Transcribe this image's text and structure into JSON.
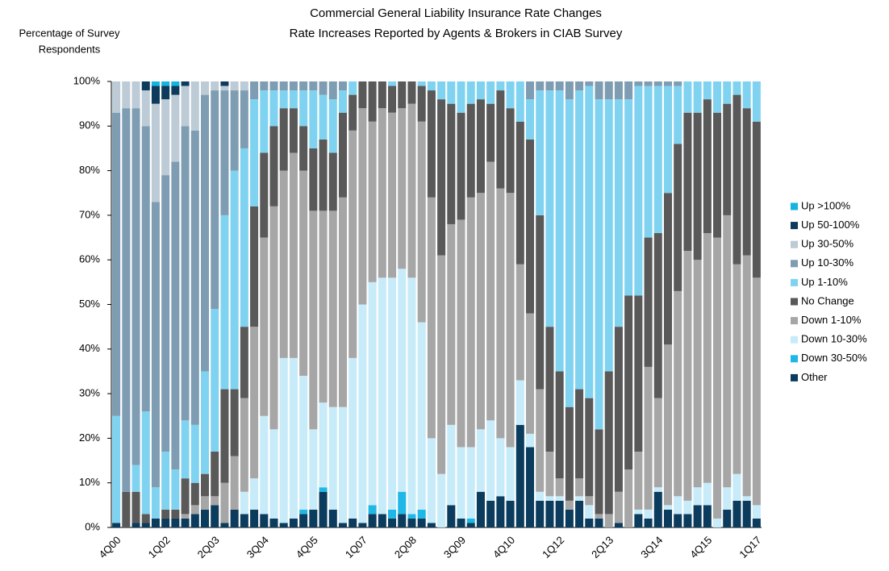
{
  "chart_data": {
    "type": "stacked-bar",
    "title": "Commercial General Liability Insurance Rate Changes",
    "subtitle": "Rate Increases Reported by Agents & Brokers in CIAB Survey",
    "ylabel": [
      "Percentage of Survey",
      "Respondents"
    ],
    "categories": [
      "4Q00",
      null,
      null,
      null,
      null,
      "1Q02",
      null,
      null,
      null,
      null,
      "2Q03",
      null,
      null,
      null,
      null,
      "3Q04",
      null,
      null,
      null,
      null,
      "4Q05",
      null,
      null,
      null,
      null,
      "1Q07",
      null,
      null,
      null,
      null,
      "2Q08",
      null,
      null,
      null,
      null,
      "3Q09",
      null,
      null,
      null,
      null,
      "4Q10",
      null,
      null,
      null,
      null,
      "1Q12",
      null,
      null,
      null,
      null,
      "2Q13",
      null,
      null,
      null,
      null,
      "3Q14",
      null,
      null,
      null,
      null,
      "4Q15",
      null,
      null,
      null,
      null,
      "1Q17"
    ],
    "ylim": [
      0,
      100
    ],
    "yticks": [
      {
        "value": 0,
        "label": "0%"
      },
      {
        "value": 10,
        "label": "10%"
      },
      {
        "value": 20,
        "label": "20%"
      },
      {
        "value": 30,
        "label": "30%"
      },
      {
        "value": 40,
        "label": "40%"
      },
      {
        "value": 50,
        "label": "50%"
      },
      {
        "value": 60,
        "label": "60%"
      },
      {
        "value": 70,
        "label": "70%"
      },
      {
        "value": 80,
        "label": "80%"
      },
      {
        "value": 90,
        "label": "90%"
      },
      {
        "value": 100,
        "label": "100%"
      }
    ],
    "grid": false,
    "legend": "right",
    "series": [
      {
        "name": "Up >100%",
        "color": "#13b5e0",
        "values": [
          0,
          0,
          0,
          0,
          1,
          1,
          1,
          0,
          0,
          0,
          0,
          0,
          0,
          0,
          0,
          0,
          0,
          0,
          0,
          0,
          0,
          0,
          0,
          0,
          0,
          0,
          0,
          0,
          0,
          0,
          0,
          0,
          0,
          0,
          0,
          0,
          0,
          0,
          0,
          0,
          0,
          0,
          0,
          0,
          0,
          0,
          0,
          0,
          0,
          0,
          0,
          0,
          0,
          0,
          0,
          0,
          0,
          0,
          0,
          0,
          0,
          0,
          0,
          0,
          0,
          0
        ]
      },
      {
        "name": "Up 50-100%",
        "color": "#0e3a5c",
        "values": [
          0,
          0,
          0,
          2,
          4,
          3,
          2,
          1,
          0,
          0,
          0,
          1,
          0,
          0,
          0,
          0,
          0,
          0,
          0,
          0,
          0,
          0,
          0,
          0,
          0,
          0,
          0,
          0,
          0,
          0,
          0,
          0,
          0,
          0,
          0,
          0,
          0,
          0,
          0,
          0,
          0,
          0,
          0,
          0,
          0,
          0,
          0,
          0,
          0,
          0,
          0,
          0,
          0,
          0,
          0,
          0,
          0,
          0,
          0,
          0,
          0,
          0,
          0,
          0,
          0,
          0
        ]
      },
      {
        "name": "Up 30-50%",
        "color": "#bccbd6",
        "values": [
          7,
          6,
          6,
          8,
          22,
          17,
          15,
          9,
          11,
          3,
          2,
          1,
          2,
          2,
          0,
          0,
          0,
          0,
          0,
          0,
          0,
          0,
          0,
          0,
          0,
          0,
          0,
          0,
          0,
          0,
          0,
          0,
          0,
          0,
          0,
          0,
          0,
          0,
          0,
          0,
          0,
          0,
          0,
          0,
          0,
          0,
          0,
          0,
          0,
          0,
          0,
          0,
          0,
          0,
          0,
          0,
          0,
          0,
          0,
          0,
          0,
          0,
          0,
          0,
          0,
          0
        ]
      },
      {
        "name": "Up 10-30%",
        "color": "#7f9db2",
        "values": [
          68,
          86,
          80,
          64,
          64,
          62,
          69,
          66,
          66,
          62,
          49,
          28,
          18,
          13,
          4,
          2,
          2,
          2,
          2,
          2,
          2,
          3,
          4,
          2,
          0,
          0,
          0,
          0,
          0,
          0,
          0,
          0,
          0,
          0,
          0,
          0,
          0,
          0,
          0,
          0,
          0,
          0,
          4,
          2,
          2,
          2,
          4,
          2,
          1,
          4,
          4,
          4,
          4,
          1,
          1,
          1,
          1,
          1,
          0,
          0,
          0,
          0,
          0,
          0,
          0,
          0
        ]
      },
      {
        "name": "Up 1-10%",
        "color": "#80d3f0",
        "values": [
          24,
          0,
          6,
          23,
          7,
          13,
          9,
          13,
          13,
          23,
          32,
          39,
          49,
          40,
          24,
          14,
          8,
          4,
          4,
          8,
          13,
          10,
          12,
          5,
          3,
          0,
          0,
          0,
          1,
          0,
          0,
          1,
          2,
          4,
          5,
          7,
          5,
          4,
          5,
          2,
          6,
          9,
          9,
          28,
          53,
          63,
          69,
          67,
          70,
          74,
          61,
          51,
          44,
          47,
          34,
          33,
          24,
          13,
          7,
          7,
          4,
          7,
          5,
          3,
          6,
          9
        ]
      },
      {
        "name": "No Change",
        "color": "#595959",
        "values": [
          0,
          8,
          7,
          2,
          0,
          2,
          2,
          8,
          5,
          5,
          10,
          21,
          15,
          16,
          27,
          19,
          18,
          14,
          10,
          10,
          14,
          16,
          13,
          19,
          8,
          6,
          9,
          6,
          6,
          6,
          5,
          8,
          24,
          35,
          27,
          24,
          21,
          21,
          13,
          22,
          19,
          32,
          39,
          39,
          28,
          24,
          21,
          20,
          22,
          19,
          32,
          37,
          39,
          35,
          29,
          37,
          34,
          33,
          31,
          33,
          30,
          28,
          25,
          38,
          33,
          35
        ]
      },
      {
        "name": "Down 1-10%",
        "color": "#a6a6a6",
        "values": [
          0,
          0,
          0,
          0,
          0,
          0,
          0,
          1,
          2,
          3,
          2,
          9,
          12,
          21,
          34,
          40,
          50,
          42,
          46,
          46,
          49,
          43,
          44,
          47,
          51,
          44,
          36,
          38,
          37,
          36,
          39,
          45,
          54,
          49,
          45,
          51,
          56,
          53,
          58,
          56,
          57,
          26,
          27,
          23,
          10,
          4,
          2,
          4,
          2,
          1,
          3,
          7,
          13,
          13,
          32,
          20,
          36,
          46,
          56,
          51,
          56,
          63,
          61,
          47,
          54,
          51
        ]
      },
      {
        "name": "Down 10-30%",
        "color": "#c7ebf8",
        "values": [
          0,
          0,
          0,
          0,
          0,
          0,
          0,
          0,
          0,
          0,
          0,
          0,
          0,
          5,
          7,
          22,
          20,
          37,
          36,
          30,
          18,
          19,
          23,
          26,
          36,
          49,
          50,
          53,
          52,
          50,
          53,
          42,
          19,
          12,
          18,
          16,
          16,
          14,
          18,
          13,
          12,
          10,
          3,
          2,
          1,
          1,
          0,
          1,
          3,
          0,
          0,
          0,
          0,
          1,
          2,
          1,
          1,
          4,
          3,
          4,
          5,
          2,
          5,
          6,
          1,
          3
        ]
      },
      {
        "name": "Down 30-50%",
        "color": "#1fb8e6",
        "values": [
          0,
          0,
          0,
          0,
          0,
          0,
          0,
          0,
          0,
          0,
          0,
          0,
          0,
          0,
          0,
          0,
          0,
          0,
          0,
          1,
          0,
          1,
          0,
          0,
          0,
          0,
          2,
          0,
          2,
          5,
          1,
          2,
          0,
          0,
          0,
          0,
          1,
          0,
          0,
          0,
          0,
          0,
          0,
          0,
          0,
          0,
          0,
          0,
          0,
          0,
          0,
          0,
          0,
          0,
          0,
          0,
          0,
          0,
          0,
          0,
          0,
          0,
          0,
          0,
          0,
          0
        ]
      },
      {
        "name": "Other",
        "color": "#0b3c5d",
        "values": [
          1,
          0,
          1,
          1,
          2,
          2,
          2,
          2,
          3,
          4,
          5,
          1,
          4,
          3,
          4,
          3,
          2,
          1,
          2,
          3,
          4,
          8,
          4,
          1,
          2,
          1,
          3,
          3,
          2,
          3,
          2,
          2,
          1,
          0,
          5,
          2,
          1,
          8,
          6,
          7,
          6,
          23,
          18,
          6,
          6,
          6,
          4,
          6,
          2,
          2,
          0,
          1,
          0,
          3,
          2,
          8,
          4,
          3,
          3,
          5,
          5,
          0,
          4,
          6,
          6,
          2
        ]
      }
    ]
  }
}
